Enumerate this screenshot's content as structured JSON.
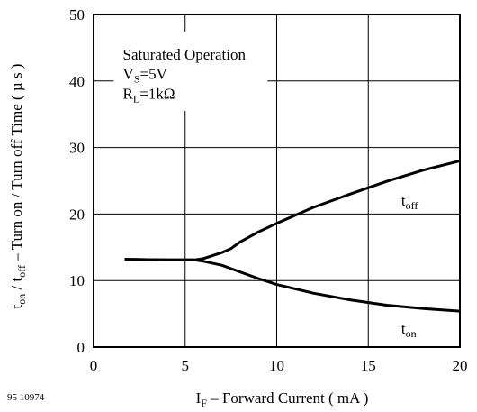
{
  "chart_data": {
    "type": "line",
    "figure_id": "95 10974",
    "xlabel": {
      "main": "I",
      "sub": "F",
      "rest": " – Forward Current ( mA )"
    },
    "ylabel": {
      "p1": "t",
      "p1_sub": "on",
      "p2": " / t",
      "p2_sub": "off",
      "p3": "  – Turn on / Turn off Time ( µ s )"
    },
    "xlim": [
      0,
      20
    ],
    "ylim": [
      0,
      50
    ],
    "x_ticks": [
      "0",
      "5",
      "10",
      "15",
      "20"
    ],
    "y_ticks": [
      "0",
      "10",
      "20",
      "30",
      "40",
      "50"
    ],
    "grid": true,
    "annotation": {
      "line1": "Saturated Operation",
      "line2_main": "V",
      "line2_sub": "S",
      "line2_rest": "=5V",
      "line3_main": "R",
      "line3_sub": "L",
      "line3_rest": "=1kΩ"
    },
    "series": [
      {
        "name_main": "t",
        "name_sub": "off",
        "points": [
          [
            1.7,
            13.2
          ],
          [
            3,
            13.15
          ],
          [
            4,
            13.1
          ],
          [
            5,
            13.1
          ],
          [
            5.5,
            13.1
          ],
          [
            6,
            13.3
          ],
          [
            7,
            14.2
          ],
          [
            7.5,
            14.8
          ],
          [
            8,
            15.8
          ],
          [
            9,
            17.3
          ],
          [
            10,
            18.6
          ],
          [
            12,
            21
          ],
          [
            14,
            23
          ],
          [
            16,
            24.9
          ],
          [
            18,
            26.6
          ],
          [
            20,
            28
          ]
        ]
      },
      {
        "name_main": "t",
        "name_sub": "on",
        "points": [
          [
            1.7,
            13.2
          ],
          [
            3,
            13.15
          ],
          [
            4,
            13.1
          ],
          [
            5,
            13.1
          ],
          [
            5.5,
            13.1
          ],
          [
            6,
            12.9
          ],
          [
            7,
            12.3
          ],
          [
            8,
            11.3
          ],
          [
            9,
            10.3
          ],
          [
            10,
            9.4
          ],
          [
            12,
            8.1
          ],
          [
            14,
            7.1
          ],
          [
            16,
            6.3
          ],
          [
            18,
            5.8
          ],
          [
            20,
            5.4
          ]
        ]
      }
    ]
  }
}
